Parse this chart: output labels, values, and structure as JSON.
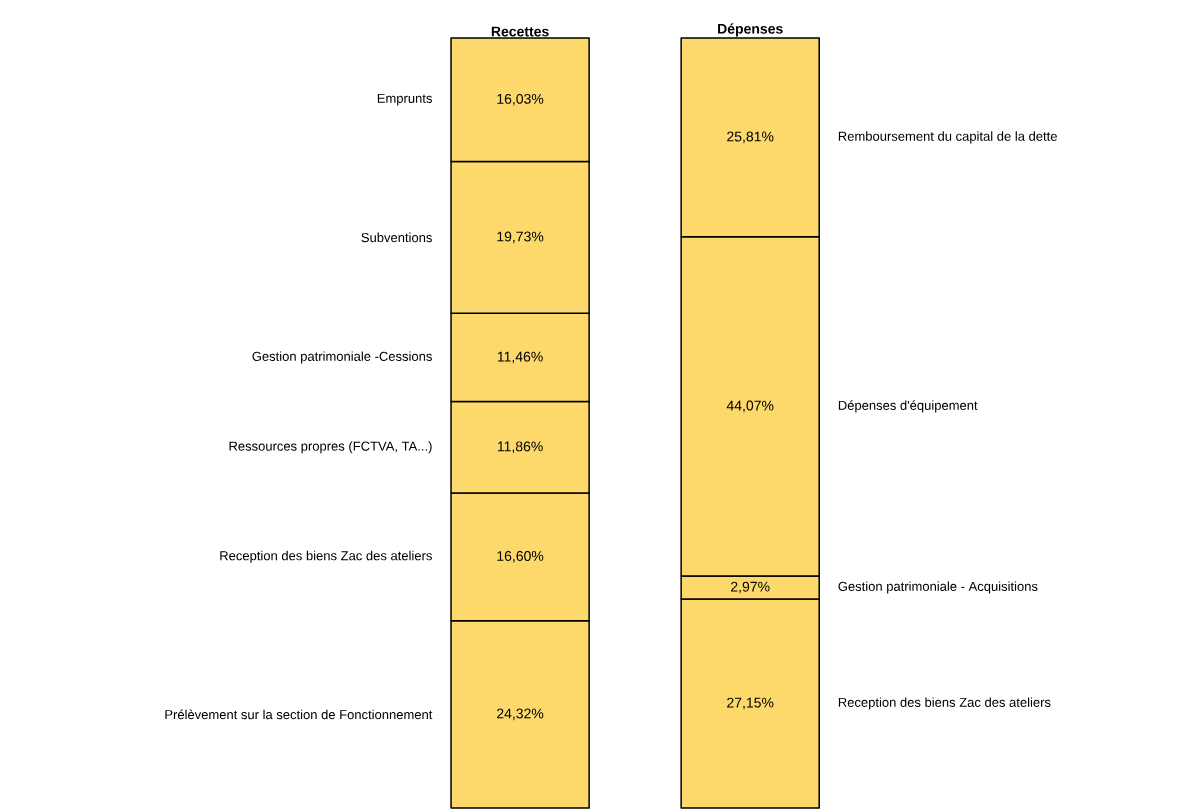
{
  "chart_data": {
    "type": "bar",
    "stacked": true,
    "categories": [
      "Recettes",
      "Dépenses"
    ],
    "series": [
      {
        "name": "Prélèvement sur la section de Fonctionnement",
        "color": "#fdd86b",
        "values": [
          24.32,
          null
        ],
        "value_labels": [
          "24,32%",
          null
        ]
      },
      {
        "name": "Reception des biens Zac des ateliers",
        "color": "#fdd86b",
        "values": [
          16.6,
          null
        ],
        "value_labels": [
          "16,60%",
          null
        ]
      },
      {
        "name": "Ressources propres (FCTVA, TA...)",
        "color": "#fdd86b",
        "values": [
          11.86,
          null
        ],
        "value_labels": [
          "11,86%",
          null
        ]
      },
      {
        "name": "Gestion patrimoniale -Cessions",
        "color": "#fdd86b",
        "values": [
          11.46,
          null
        ],
        "value_labels": [
          "11,46%",
          null
        ]
      },
      {
        "name": "Subventions",
        "color": "#fdd86b",
        "values": [
          19.73,
          null
        ],
        "value_labels": [
          "19,73%",
          null
        ]
      },
      {
        "name": "Emprunts",
        "color": "#fdd86b",
        "values": [
          16.03,
          null
        ],
        "value_labels": [
          "16,03%",
          null
        ]
      },
      {
        "name": "Reception des biens Zac des ateliers",
        "color": "#fdd86b",
        "values": [
          null,
          27.15
        ],
        "value_labels": [
          null,
          "27,15%"
        ]
      },
      {
        "name": "Gestion patrimoniale - Acquisitions",
        "color": "#fdd86b",
        "values": [
          null,
          2.97
        ],
        "value_labels": [
          null,
          "2,97%"
        ]
      },
      {
        "name": "Dépenses d'équipement",
        "color": "#fdd86b",
        "values": [
          null,
          44.07
        ],
        "value_labels": [
          null,
          "44,07%"
        ]
      },
      {
        "name": "Remboursement du capital de la dette",
        "color": "#fdd86b",
        "values": [
          null,
          25.81
        ],
        "value_labels": [
          null,
          "25,81%"
        ]
      }
    ]
  }
}
